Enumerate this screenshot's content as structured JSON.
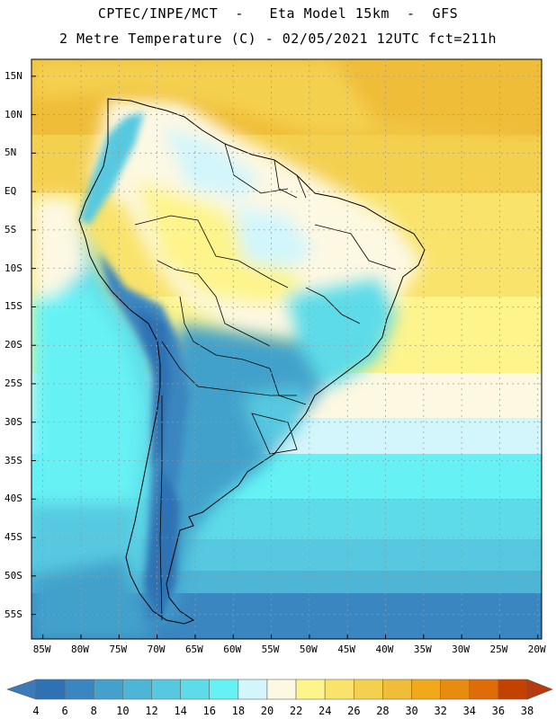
{
  "header": {
    "line1": "CPTEC/INPE/MCT  -   Eta Model 15km  -  GFS",
    "line2": "2 Metre Temperature (C) - 02/05/2021 12UTC fct=211h"
  },
  "map": {
    "region": "South America",
    "lat_labels": [
      "15N",
      "10N",
      "5N",
      "EQ",
      "5S",
      "10S",
      "15S",
      "20S",
      "25S",
      "30S",
      "35S",
      "40S",
      "45S",
      "50S",
      "55S"
    ],
    "lon_labels": [
      "85W",
      "80W",
      "75W",
      "70W",
      "65W",
      "60W",
      "55W",
      "50W",
      "45W",
      "40W",
      "35W",
      "30W",
      "25W",
      "20W"
    ],
    "lat_values": [
      15,
      10,
      5,
      0,
      -5,
      -10,
      -15,
      -20,
      -25,
      -30,
      -35,
      -40,
      -45,
      -50,
      -55
    ],
    "lon_values": [
      -85,
      -80,
      -75,
      -70,
      -65,
      -60,
      -55,
      -50,
      -45,
      -40,
      -35,
      -30,
      -25,
      -20
    ]
  },
  "colorbar": {
    "labels": [
      "4",
      "6",
      "8",
      "10",
      "12",
      "14",
      "16",
      "18",
      "20",
      "22",
      "24",
      "26",
      "28",
      "30",
      "32",
      "34",
      "36",
      "38"
    ],
    "colors": [
      "#2f72b4",
      "#3a86c0",
      "#43a1cb",
      "#4db5d6",
      "#56c9e0",
      "#5ddbe8",
      "#66f2f4",
      "#d2f6fb",
      "#fdf8e2",
      "#fdf48c",
      "#f9e36a",
      "#f4d04f",
      "#efbd38",
      "#f1a91a",
      "#e88c10",
      "#de6c08",
      "#c44200"
    ],
    "low_arrow_color": "#3d7ab8",
    "high_arrow_color": "#b83a10"
  }
}
